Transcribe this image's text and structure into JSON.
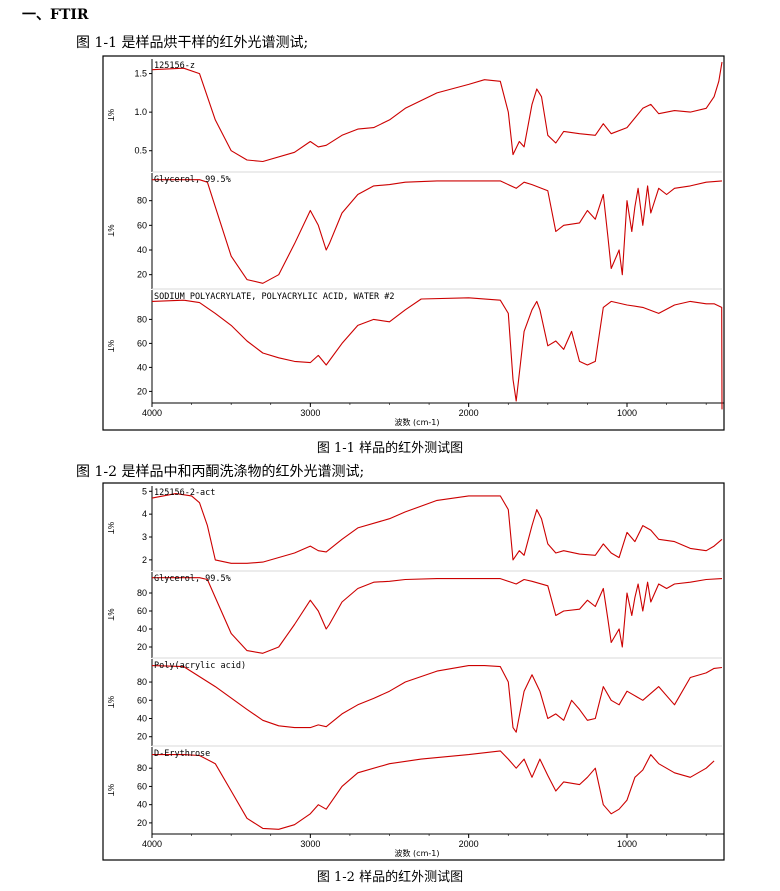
{
  "section_heading": "一、FTIR",
  "figure1": {
    "intro": "图 1-1 是样品烘干样的红外光谱测试;",
    "caption": "图 1-1 样品的红外测试图"
  },
  "figure2": {
    "intro": "图 1-2 是样品中和丙酮洗涤物的红外光谱测试;",
    "caption": "图 1-2 样品的红外测试图"
  },
  "chart_data": [
    {
      "type": "line",
      "x_axis": {
        "label": "波数 (cm-1)",
        "range": [
          4000,
          400
        ],
        "ticks": [
          4000,
          3000,
          2000,
          1000
        ],
        "tick_labels": [
          "4000",
          "3000",
          "2000",
          "1000"
        ]
      },
      "line_color": "#cc0000",
      "panels": [
        {
          "label": "125156-z",
          "ylabel": "%T",
          "ylim": [
            0.25,
            1.65
          ],
          "ticks": [
            0.5,
            1.0,
            1.5
          ],
          "tick_labels": [
            "0.5",
            "1.0",
            "1.5"
          ],
          "x": [
            4000,
            3800,
            3700,
            3600,
            3500,
            3400,
            3300,
            3100,
            3000,
            2950,
            2900,
            2800,
            2700,
            2600,
            2500,
            2400,
            2200,
            2000,
            1900,
            1800,
            1750,
            1720,
            1680,
            1650,
            1600,
            1570,
            1540,
            1500,
            1450,
            1400,
            1300,
            1200,
            1150,
            1100,
            1000,
            900,
            850,
            800,
            700,
            600,
            500,
            450,
            420,
            400
          ],
          "y": [
            1.55,
            1.57,
            1.5,
            0.9,
            0.5,
            0.38,
            0.36,
            0.48,
            0.62,
            0.55,
            0.57,
            0.7,
            0.78,
            0.8,
            0.9,
            1.05,
            1.25,
            1.36,
            1.42,
            1.4,
            1.0,
            0.45,
            0.62,
            0.55,
            1.1,
            1.3,
            1.2,
            0.7,
            0.6,
            0.75,
            0.72,
            0.7,
            0.85,
            0.72,
            0.8,
            1.05,
            1.1,
            0.98,
            1.02,
            1.0,
            1.05,
            1.2,
            1.4,
            1.65
          ]
        },
        {
          "label": "Glycerol, 99.5%",
          "ylabel": "%T",
          "ylim": [
            10,
            100
          ],
          "ticks": [
            20,
            40,
            60,
            80
          ],
          "tick_labels": [
            "20",
            "40",
            "60",
            "80"
          ],
          "x": [
            4000,
            3800,
            3700,
            3650,
            3600,
            3500,
            3400,
            3300,
            3200,
            3100,
            3000,
            2950,
            2900,
            2880,
            2800,
            2700,
            2600,
            2500,
            2400,
            2200,
            2000,
            1800,
            1700,
            1650,
            1600,
            1500,
            1450,
            1400,
            1300,
            1250,
            1200,
            1150,
            1120,
            1100,
            1050,
            1030,
            1000,
            970,
            950,
            930,
            900,
            870,
            850,
            800,
            750,
            700,
            600,
            500,
            400
          ],
          "y": [
            97,
            97,
            97,
            95,
            75,
            35,
            16,
            13,
            20,
            45,
            72,
            60,
            40,
            45,
            70,
            85,
            92,
            93,
            95,
            96,
            96,
            96,
            90,
            95,
            93,
            88,
            55,
            60,
            62,
            72,
            65,
            85,
            50,
            25,
            40,
            20,
            80,
            55,
            75,
            90,
            60,
            92,
            70,
            90,
            85,
            90,
            92,
            95,
            96
          ]
        },
        {
          "label": "SODIUM POLYACRYLATE, POLYACRYLIC ACID, WATER #2",
          "ylabel": "%T",
          "ylim": [
            12,
            102
          ],
          "ticks": [
            20,
            40,
            60,
            80
          ],
          "tick_labels": [
            "20",
            "40",
            "60",
            "80"
          ],
          "x": [
            4000,
            3800,
            3700,
            3600,
            3500,
            3400,
            3300,
            3200,
            3100,
            3000,
            2950,
            2900,
            2800,
            2700,
            2600,
            2500,
            2400,
            2300,
            2000,
            1800,
            1750,
            1720,
            1700,
            1650,
            1600,
            1570,
            1550,
            1500,
            1450,
            1400,
            1350,
            1300,
            1250,
            1200,
            1150,
            1100,
            1000,
            900,
            800,
            700,
            600,
            500,
            450,
            402,
            400
          ],
          "y": [
            95,
            96,
            94,
            85,
            75,
            62,
            52,
            48,
            45,
            44,
            50,
            42,
            60,
            75,
            80,
            78,
            88,
            97,
            98,
            96,
            85,
            30,
            12,
            70,
            88,
            95,
            88,
            58,
            62,
            55,
            70,
            45,
            42,
            45,
            90,
            95,
            92,
            90,
            85,
            92,
            95,
            93,
            93,
            90,
            5
          ]
        }
      ]
    },
    {
      "type": "line",
      "x_axis": {
        "label": "波数 (cm-1)",
        "range": [
          4000,
          400
        ],
        "ticks": [
          4000,
          3000,
          2000,
          1000
        ],
        "tick_labels": [
          "4000",
          "3000",
          "2000",
          "1000"
        ]
      },
      "line_color": "#cc0000",
      "panels": [
        {
          "label": "125156-2-act",
          "ylabel": "%T",
          "ylim": [
            1.6,
            5.1
          ],
          "ticks": [
            2,
            3,
            4,
            5
          ],
          "tick_labels": [
            "2",
            "3",
            "4",
            "5"
          ],
          "x": [
            4000,
            3850,
            3750,
            3700,
            3650,
            3600,
            3500,
            3400,
            3300,
            3100,
            3000,
            2950,
            2900,
            2800,
            2700,
            2500,
            2400,
            2200,
            2000,
            1800,
            1750,
            1720,
            1680,
            1650,
            1600,
            1570,
            1540,
            1500,
            1450,
            1400,
            1300,
            1200,
            1150,
            1100,
            1050,
            1000,
            950,
            900,
            850,
            800,
            700,
            600,
            500,
            450,
            400
          ],
          "y": [
            4.7,
            4.9,
            4.8,
            4.5,
            3.5,
            2.0,
            1.85,
            1.85,
            1.9,
            2.3,
            2.6,
            2.4,
            2.35,
            2.9,
            3.4,
            3.8,
            4.1,
            4.6,
            4.8,
            4.8,
            4.2,
            2.0,
            2.4,
            2.2,
            3.5,
            4.2,
            3.8,
            2.7,
            2.3,
            2.4,
            2.25,
            2.2,
            2.7,
            2.3,
            2.1,
            3.2,
            2.8,
            3.5,
            3.3,
            2.9,
            2.8,
            2.5,
            2.4,
            2.6,
            2.9
          ]
        },
        {
          "label": "Glycerol, 99.5%",
          "ylabel": "%T",
          "ylim": [
            10,
            100
          ],
          "ticks": [
            20,
            40,
            60,
            80
          ],
          "tick_labels": [
            "20",
            "40",
            "60",
            "80"
          ],
          "x": [
            4000,
            3800,
            3700,
            3650,
            3600,
            3500,
            3400,
            3300,
            3200,
            3100,
            3000,
            2950,
            2900,
            2880,
            2800,
            2700,
            2600,
            2500,
            2400,
            2200,
            2000,
            1800,
            1700,
            1650,
            1600,
            1500,
            1450,
            1400,
            1300,
            1250,
            1200,
            1150,
            1120,
            1100,
            1050,
            1030,
            1000,
            970,
            950,
            930,
            900,
            870,
            850,
            800,
            750,
            700,
            600,
            500,
            400
          ],
          "y": [
            97,
            97,
            97,
            95,
            75,
            35,
            16,
            13,
            20,
            45,
            72,
            60,
            40,
            45,
            70,
            85,
            92,
            93,
            95,
            96,
            96,
            96,
            90,
            95,
            93,
            88,
            55,
            60,
            62,
            72,
            65,
            85,
            50,
            25,
            40,
            20,
            80,
            55,
            75,
            90,
            60,
            92,
            70,
            90,
            85,
            90,
            92,
            95,
            96
          ]
        },
        {
          "label": "Poly(acrylic acid)",
          "ylabel": "%T",
          "ylim": [
            12,
            102
          ],
          "ticks": [
            20,
            40,
            60,
            80
          ],
          "tick_labels": [
            "20",
            "40",
            "60",
            "80"
          ],
          "x": [
            4000,
            3800,
            3600,
            3400,
            3300,
            3200,
            3100,
            3000,
            2950,
            2900,
            2800,
            2700,
            2600,
            2500,
            2400,
            2200,
            2000,
            1900,
            1800,
            1750,
            1720,
            1700,
            1650,
            1600,
            1550,
            1500,
            1450,
            1400,
            1350,
            1300,
            1250,
            1200,
            1150,
            1100,
            1050,
            1000,
            900,
            800,
            700,
            600,
            500,
            450,
            400
          ],
          "y": [
            98,
            97,
            75,
            50,
            38,
            32,
            30,
            30,
            33,
            31,
            45,
            55,
            62,
            70,
            80,
            92,
            98,
            98,
            97,
            80,
            30,
            25,
            70,
            88,
            70,
            40,
            45,
            38,
            60,
            50,
            38,
            40,
            75,
            60,
            55,
            70,
            60,
            75,
            55,
            85,
            90,
            95,
            96
          ]
        },
        {
          "label": "D-Erythrose",
          "ylabel": "%T",
          "ylim": [
            10,
            100
          ],
          "ticks": [
            20,
            40,
            60,
            80
          ],
          "tick_labels": [
            "20",
            "40",
            "60",
            "80"
          ],
          "x": [
            4000,
            3800,
            3700,
            3600,
            3500,
            3400,
            3300,
            3200,
            3100,
            3000,
            2950,
            2900,
            2800,
            2700,
            2500,
            2300,
            2000,
            1800,
            1750,
            1700,
            1650,
            1600,
            1550,
            1500,
            1450,
            1400,
            1300,
            1250,
            1200,
            1150,
            1100,
            1050,
            1000,
            950,
            900,
            850,
            800,
            700,
            600,
            500,
            450
          ],
          "y": [
            95,
            95,
            94,
            85,
            55,
            25,
            14,
            13,
            18,
            30,
            40,
            35,
            60,
            75,
            85,
            90,
            95,
            99,
            90,
            80,
            90,
            70,
            90,
            72,
            55,
            65,
            62,
            70,
            80,
            40,
            30,
            35,
            45,
            70,
            78,
            95,
            85,
            75,
            70,
            80,
            88
          ]
        }
      ]
    }
  ]
}
